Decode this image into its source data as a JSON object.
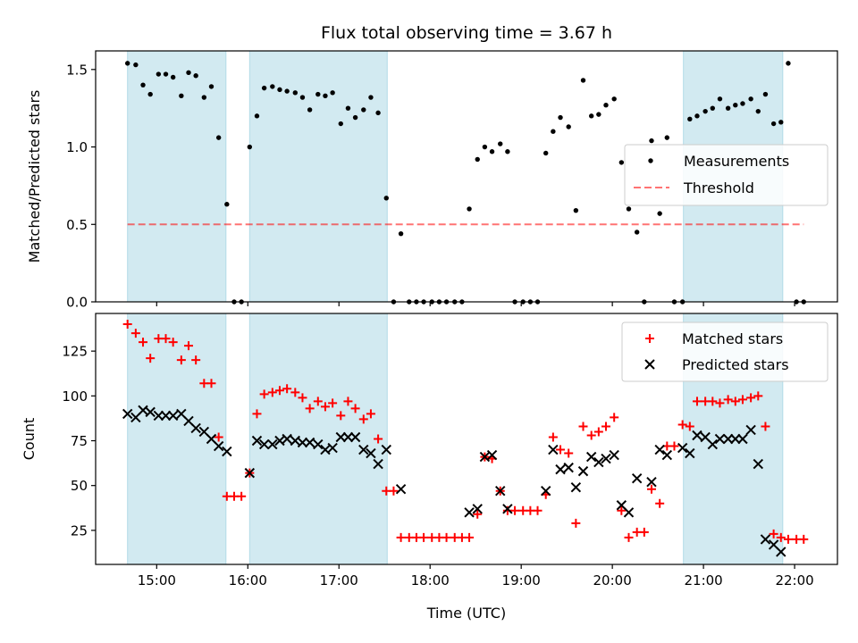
{
  "figure": {
    "title": "Flux total observing time = 3.67 h",
    "xlabel": "Time (UTC)",
    "xticks": [
      {
        "h": 15,
        "label": "15:00"
      },
      {
        "h": 16,
        "label": "16:00"
      },
      {
        "h": 17,
        "label": "17:00"
      },
      {
        "h": 18,
        "label": "18:00"
      },
      {
        "h": 19,
        "label": "19:00"
      },
      {
        "h": 20,
        "label": "20:00"
      },
      {
        "h": 21,
        "label": "21:00"
      },
      {
        "h": 22,
        "label": "22:00"
      }
    ]
  },
  "colors": {
    "shade": "#add8e6",
    "threshold": "#ff0000",
    "measurement": "#000000",
    "matched": "#ff0000",
    "predicted": "#000000"
  },
  "chart_data": [
    {
      "type": "scatter",
      "title": "Flux total observing time = 3.67 h",
      "xlabel": "",
      "ylabel": "Matched/Predicted stars",
      "x_unit": "hours UTC",
      "xlim": [
        14.33,
        22.47
      ],
      "ylim": [
        0,
        1.62
      ],
      "yticks": [
        {
          "v": 0.0,
          "label": "0.0"
        },
        {
          "v": 0.5,
          "label": "0.5"
        },
        {
          "v": 1.0,
          "label": "1.0"
        },
        {
          "v": 1.5,
          "label": "1.5"
        }
      ],
      "grid": false,
      "legend_position": "center-right",
      "shaded_intervals": [
        [
          14.68,
          15.76
        ],
        [
          16.02,
          17.53
        ],
        [
          20.78,
          21.87
        ]
      ],
      "threshold": {
        "name": "Threshold",
        "y": 0.5,
        "x_range": [
          14.68,
          22.1
        ]
      },
      "series": [
        {
          "name": "Measurements",
          "marker": "dot",
          "points": [
            [
              14.68,
              1.54
            ],
            [
              14.77,
              1.53
            ],
            [
              14.85,
              1.4
            ],
            [
              14.93,
              1.34
            ],
            [
              15.02,
              1.47
            ],
            [
              15.1,
              1.47
            ],
            [
              15.18,
              1.45
            ],
            [
              15.27,
              1.33
            ],
            [
              15.35,
              1.48
            ],
            [
              15.43,
              1.46
            ],
            [
              15.52,
              1.32
            ],
            [
              15.6,
              1.39
            ],
            [
              15.68,
              1.06
            ],
            [
              15.77,
              0.63
            ],
            [
              15.85,
              0.0
            ],
            [
              15.93,
              0.0
            ],
            [
              16.02,
              1.0
            ],
            [
              16.1,
              1.2
            ],
            [
              16.18,
              1.38
            ],
            [
              16.27,
              1.39
            ],
            [
              16.35,
              1.37
            ],
            [
              16.43,
              1.36
            ],
            [
              16.52,
              1.35
            ],
            [
              16.6,
              1.32
            ],
            [
              16.68,
              1.24
            ],
            [
              16.77,
              1.34
            ],
            [
              16.85,
              1.33
            ],
            [
              16.93,
              1.35
            ],
            [
              17.02,
              1.15
            ],
            [
              17.1,
              1.25
            ],
            [
              17.18,
              1.19
            ],
            [
              17.27,
              1.24
            ],
            [
              17.35,
              1.32
            ],
            [
              17.43,
              1.22
            ],
            [
              17.52,
              0.67
            ],
            [
              17.6,
              0.0
            ],
            [
              17.68,
              0.44
            ],
            [
              17.77,
              0.0
            ],
            [
              17.85,
              0.0
            ],
            [
              17.93,
              0.0
            ],
            [
              18.02,
              0.0
            ],
            [
              18.1,
              0.0
            ],
            [
              18.18,
              0.0
            ],
            [
              18.27,
              0.0
            ],
            [
              18.35,
              0.0
            ],
            [
              18.43,
              0.6
            ],
            [
              18.52,
              0.92
            ],
            [
              18.6,
              1.0
            ],
            [
              18.68,
              0.97
            ],
            [
              18.77,
              1.02
            ],
            [
              18.85,
              0.97
            ],
            [
              18.93,
              0.0
            ],
            [
              19.02,
              0.0
            ],
            [
              19.1,
              0.0
            ],
            [
              19.18,
              0.0
            ],
            [
              19.27,
              0.96
            ],
            [
              19.35,
              1.1
            ],
            [
              19.43,
              1.19
            ],
            [
              19.52,
              1.13
            ],
            [
              19.6,
              0.59
            ],
            [
              19.68,
              1.43
            ],
            [
              19.77,
              1.2
            ],
            [
              19.85,
              1.21
            ],
            [
              19.93,
              1.27
            ],
            [
              20.02,
              1.31
            ],
            [
              20.1,
              0.9
            ],
            [
              20.18,
              0.6
            ],
            [
              20.27,
              0.45
            ],
            [
              20.35,
              0.0
            ],
            [
              20.43,
              1.04
            ],
            [
              20.52,
              0.57
            ],
            [
              20.6,
              1.06
            ],
            [
              20.68,
              0.0
            ],
            [
              20.77,
              0.0
            ],
            [
              20.85,
              1.18
            ],
            [
              20.93,
              1.2
            ],
            [
              21.02,
              1.23
            ],
            [
              21.1,
              1.25
            ],
            [
              21.18,
              1.31
            ],
            [
              21.27,
              1.25
            ],
            [
              21.35,
              1.27
            ],
            [
              21.43,
              1.28
            ],
            [
              21.52,
              1.31
            ],
            [
              21.6,
              1.23
            ],
            [
              21.68,
              1.34
            ],
            [
              21.77,
              1.15
            ],
            [
              21.85,
              1.16
            ],
            [
              21.93,
              1.54
            ],
            [
              22.02,
              0.0
            ],
            [
              22.1,
              0.0
            ]
          ]
        }
      ]
    },
    {
      "type": "scatter",
      "title": "",
      "xlabel": "Time (UTC)",
      "ylabel": "Count",
      "x_unit": "hours UTC",
      "xlim": [
        14.33,
        22.47
      ],
      "ylim": [
        6,
        146
      ],
      "yticks": [
        {
          "v": 25,
          "label": "25"
        },
        {
          "v": 50,
          "label": "50"
        },
        {
          "v": 75,
          "label": "75"
        },
        {
          "v": 100,
          "label": "100"
        },
        {
          "v": 125,
          "label": "125"
        }
      ],
      "grid": false,
      "legend_position": "top-right",
      "shaded_intervals": [
        [
          14.68,
          15.76
        ],
        [
          16.02,
          17.53
        ],
        [
          20.78,
          21.87
        ]
      ],
      "series": [
        {
          "name": "Matched stars",
          "marker": "plus",
          "points": [
            [
              14.68,
              140
            ],
            [
              14.77,
              135
            ],
            [
              14.85,
              130
            ],
            [
              14.93,
              121
            ],
            [
              15.02,
              132
            ],
            [
              15.1,
              132
            ],
            [
              15.18,
              130
            ],
            [
              15.27,
              120
            ],
            [
              15.35,
              128
            ],
            [
              15.43,
              120
            ],
            [
              15.52,
              107
            ],
            [
              15.6,
              107
            ],
            [
              15.68,
              77
            ],
            [
              15.77,
              44
            ],
            [
              15.85,
              44
            ],
            [
              15.93,
              44
            ],
            [
              16.02,
              57
            ],
            [
              16.1,
              90
            ],
            [
              16.18,
              101
            ],
            [
              16.27,
              102
            ],
            [
              16.35,
              103
            ],
            [
              16.43,
              104
            ],
            [
              16.52,
              102
            ],
            [
              16.6,
              99
            ],
            [
              16.68,
              93
            ],
            [
              16.77,
              97
            ],
            [
              16.85,
              94
            ],
            [
              16.93,
              96
            ],
            [
              17.02,
              89
            ],
            [
              17.1,
              97
            ],
            [
              17.18,
              93
            ],
            [
              17.27,
              87
            ],
            [
              17.35,
              90
            ],
            [
              17.43,
              76
            ],
            [
              17.52,
              47
            ],
            [
              17.6,
              47
            ],
            [
              17.68,
              21
            ],
            [
              17.77,
              21
            ],
            [
              17.85,
              21
            ],
            [
              17.93,
              21
            ],
            [
              18.02,
              21
            ],
            [
              18.1,
              21
            ],
            [
              18.18,
              21
            ],
            [
              18.27,
              21
            ],
            [
              18.35,
              21
            ],
            [
              18.43,
              21
            ],
            [
              18.52,
              34
            ],
            [
              18.6,
              66
            ],
            [
              18.68,
              65
            ],
            [
              18.77,
              47
            ],
            [
              18.85,
              36
            ],
            [
              18.93,
              36
            ],
            [
              19.02,
              36
            ],
            [
              19.1,
              36
            ],
            [
              19.18,
              36
            ],
            [
              19.27,
              45
            ],
            [
              19.35,
              77
            ],
            [
              19.43,
              70
            ],
            [
              19.52,
              68
            ],
            [
              19.6,
              29
            ],
            [
              19.68,
              83
            ],
            [
              19.77,
              78
            ],
            [
              19.85,
              80
            ],
            [
              19.93,
              83
            ],
            [
              20.02,
              88
            ],
            [
              20.1,
              36
            ],
            [
              20.18,
              21
            ],
            [
              20.27,
              24
            ],
            [
              20.35,
              24
            ],
            [
              20.43,
              48
            ],
            [
              20.52,
              40
            ],
            [
              20.6,
              72
            ],
            [
              20.68,
              72
            ],
            [
              20.77,
              84
            ],
            [
              20.85,
              83
            ],
            [
              20.93,
              97
            ],
            [
              21.02,
              97
            ],
            [
              21.1,
              97
            ],
            [
              21.18,
              96
            ],
            [
              21.27,
              98
            ],
            [
              21.35,
              97
            ],
            [
              21.43,
              98
            ],
            [
              21.52,
              99
            ],
            [
              21.6,
              100
            ],
            [
              21.68,
              83
            ],
            [
              21.77,
              23
            ],
            [
              21.85,
              21
            ],
            [
              21.93,
              20
            ],
            [
              22.02,
              20
            ],
            [
              22.1,
              20
            ]
          ]
        },
        {
          "name": "Predicted stars",
          "marker": "x",
          "points": [
            [
              14.68,
              90
            ],
            [
              14.77,
              88
            ],
            [
              14.85,
              92
            ],
            [
              14.93,
              91
            ],
            [
              15.02,
              89
            ],
            [
              15.1,
              89
            ],
            [
              15.18,
              89
            ],
            [
              15.27,
              90
            ],
            [
              15.35,
              86
            ],
            [
              15.43,
              82
            ],
            [
              15.52,
              80
            ],
            [
              15.6,
              76
            ],
            [
              15.68,
              72
            ],
            [
              15.77,
              69
            ],
            [
              16.02,
              57
            ],
            [
              16.1,
              75
            ],
            [
              16.18,
              73
            ],
            [
              16.27,
              73
            ],
            [
              16.35,
              75
            ],
            [
              16.43,
              76
            ],
            [
              16.52,
              75
            ],
            [
              16.6,
              74
            ],
            [
              16.68,
              74
            ],
            [
              16.77,
              73
            ],
            [
              16.85,
              70
            ],
            [
              16.93,
              71
            ],
            [
              17.02,
              77
            ],
            [
              17.1,
              77
            ],
            [
              17.18,
              77
            ],
            [
              17.27,
              70
            ],
            [
              17.35,
              68
            ],
            [
              17.43,
              62
            ],
            [
              17.52,
              70
            ],
            [
              17.68,
              48
            ],
            [
              18.43,
              35
            ],
            [
              18.52,
              37
            ],
            [
              18.6,
              66
            ],
            [
              18.68,
              67
            ],
            [
              18.77,
              47
            ],
            [
              18.85,
              37
            ],
            [
              19.27,
              47
            ],
            [
              19.35,
              70
            ],
            [
              19.43,
              59
            ],
            [
              19.52,
              60
            ],
            [
              19.6,
              49
            ],
            [
              19.68,
              58
            ],
            [
              19.77,
              66
            ],
            [
              19.85,
              63
            ],
            [
              19.93,
              65
            ],
            [
              20.02,
              67
            ],
            [
              20.1,
              39
            ],
            [
              20.18,
              35
            ],
            [
              20.27,
              54
            ],
            [
              20.43,
              52
            ],
            [
              20.52,
              70
            ],
            [
              20.6,
              67
            ],
            [
              20.77,
              71
            ],
            [
              20.85,
              68
            ],
            [
              20.93,
              78
            ],
            [
              21.02,
              77
            ],
            [
              21.1,
              73
            ],
            [
              21.18,
              76
            ],
            [
              21.27,
              76
            ],
            [
              21.35,
              76
            ],
            [
              21.43,
              76
            ],
            [
              21.52,
              81
            ],
            [
              21.6,
              62
            ],
            [
              21.68,
              20
            ],
            [
              21.77,
              17
            ],
            [
              21.85,
              13
            ]
          ]
        }
      ]
    }
  ]
}
